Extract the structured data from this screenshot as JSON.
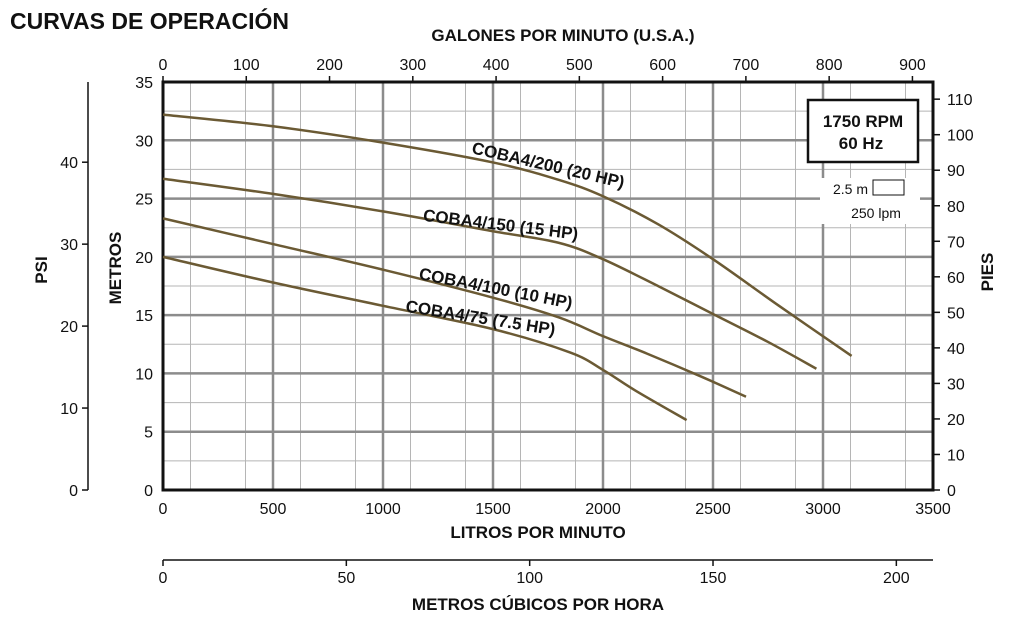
{
  "page": {
    "title": "CURVAS DE OPERACIÓN"
  },
  "chart_data": {
    "type": "line",
    "title": "CURVAS DE OPERACIÓN",
    "xlabel": "LITROS POR MINUTO",
    "ylabel": "METROS",
    "xlim": [
      0,
      3500
    ],
    "ylim": [
      0,
      35
    ],
    "x_ticks": [
      0,
      500,
      1000,
      1500,
      2000,
      2500,
      3000,
      3500
    ],
    "y_ticks": [
      0,
      5,
      10,
      15,
      20,
      25,
      30,
      35
    ],
    "grid": true,
    "top_axis": {
      "label": "GALONES POR MINUTO (U.S.A.)",
      "ticks": [
        0,
        100,
        200,
        300,
        400,
        500,
        600,
        700,
        800,
        900
      ],
      "lpm_per_unit": 3.785
    },
    "bottom_axis_2": {
      "label": "METROS CÚBICOS POR HORA",
      "ticks": [
        0,
        50,
        100,
        150,
        200
      ],
      "lpm_per_unit": 16.667
    },
    "left_axis_2": {
      "label": "PSI",
      "ticks": [
        0,
        10,
        20,
        30,
        40
      ],
      "m_per_unit": 0.703
    },
    "right_axis": {
      "label": "PIES",
      "ticks": [
        0,
        10,
        20,
        30,
        40,
        50,
        60,
        70,
        80,
        90,
        100,
        110
      ],
      "m_per_unit": 0.3048
    },
    "info_box": {
      "line1": "1750 RPM",
      "line2": "60 Hz"
    },
    "scale_note": {
      "vertical": "2.5 m",
      "horizontal": "250 lpm"
    },
    "series": [
      {
        "name": "COBA4/200 (20 HP)",
        "x": [
          0,
          500,
          1000,
          1500,
          1800,
          2000,
          2250,
          2500,
          2800,
          3130
        ],
        "y": [
          32.2,
          31.2,
          29.8,
          28.1,
          26.6,
          25.2,
          22.8,
          19.8,
          15.8,
          11.5
        ]
      },
      {
        "name": "COBA4/150 (15 HP)",
        "x": [
          0,
          500,
          1000,
          1500,
          1800,
          2000,
          2250,
          2500,
          2750,
          2970
        ],
        "y": [
          26.7,
          25.4,
          23.9,
          22.2,
          21.2,
          19.8,
          17.5,
          15.1,
          12.7,
          10.4
        ]
      },
      {
        "name": "COBA4/100 (10 HP)",
        "x": [
          0,
          500,
          1000,
          1500,
          1800,
          2000,
          2200,
          2450,
          2650
        ],
        "y": [
          23.3,
          21.1,
          18.9,
          16.5,
          14.8,
          13.2,
          11.7,
          9.7,
          8.0
        ]
      },
      {
        "name": "COBA4/75 (7.5 HP)",
        "x": [
          0,
          500,
          1000,
          1500,
          1850,
          2000,
          2150,
          2380
        ],
        "y": [
          20.0,
          17.8,
          15.8,
          13.8,
          11.8,
          10.3,
          8.5,
          6.0
        ]
      }
    ],
    "line_color": "#6b5a34"
  }
}
